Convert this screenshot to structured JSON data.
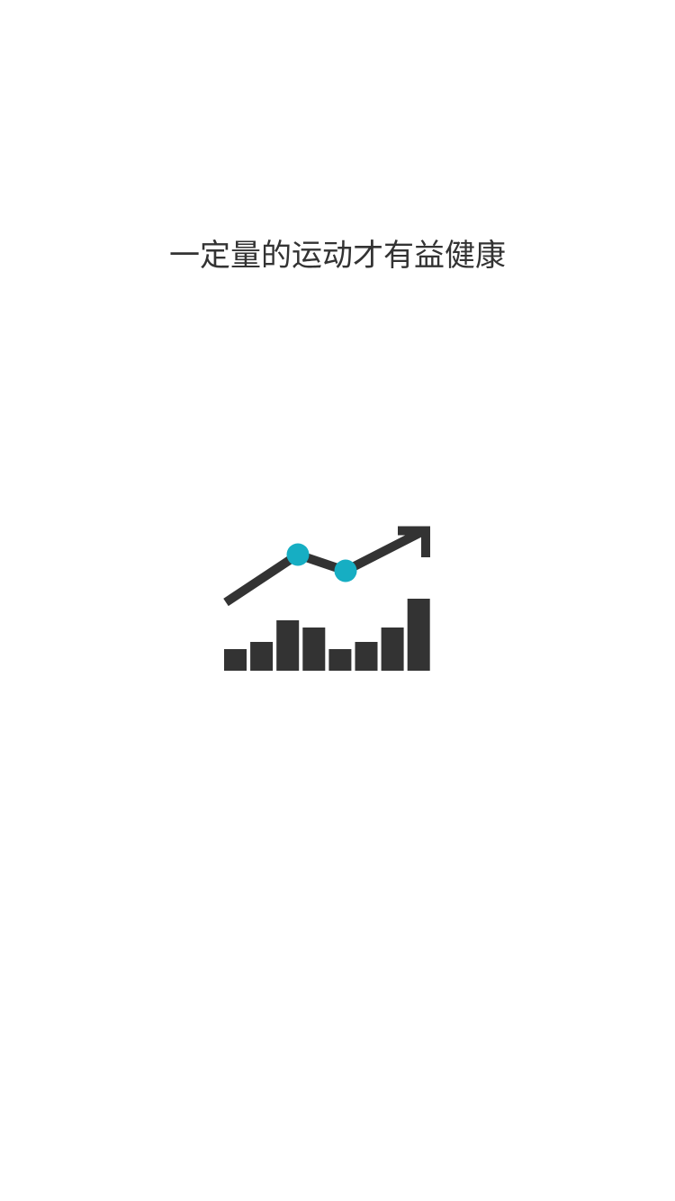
{
  "headline": "一定量的运动才有益健康",
  "illustration": {
    "icon": "growth-chart-icon",
    "bar_levels": [
      0.3,
      0.4,
      0.7,
      0.6,
      0.3,
      0.4,
      0.6,
      1.0
    ],
    "trend_levels": [
      0.15,
      0.68,
      0.5,
      0.95
    ],
    "colors": {
      "ink": "#333333",
      "accent": "#16aec3"
    }
  }
}
